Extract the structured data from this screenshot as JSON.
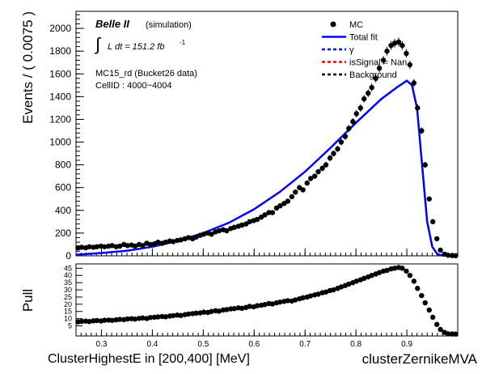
{
  "chart_data": {
    "type": "scatter",
    "experiment": "Belle II",
    "simulation_tag": "(simulation)",
    "lumi_integral": "∫",
    "lumi_text": "L dt = 151.2 fb",
    "lumi_exp": "-1",
    "sample_line1": "MC15_rd (Bucket26 data)",
    "sample_line2": "CellID : 4000~4004",
    "ylabel": "Events / ( 0.0075 )",
    "pull_ylabel": "Pull",
    "xlabel": "ClusterHighestE in [200,400] [MeV]",
    "xlabel2": "clusterZernikeMVA",
    "xlim": [
      0.25,
      1.0
    ],
    "ylim": [
      0,
      2150
    ],
    "pull_ylim": [
      -2,
      48
    ],
    "x_ticks": [
      "0.3",
      "0.4",
      "0.5",
      "0.6",
      "0.7",
      "0.8",
      "0.9"
    ],
    "x_tick_values": [
      0.3,
      0.4,
      0.5,
      0.6,
      0.7,
      0.8,
      0.9
    ],
    "y_ticks": [
      "0",
      "200",
      "400",
      "600",
      "800",
      "1000",
      "1200",
      "1400",
      "1600",
      "1800",
      "2000"
    ],
    "y_tick_values": [
      0,
      200,
      400,
      600,
      800,
      1000,
      1200,
      1400,
      1600,
      1800,
      2000
    ],
    "pull_ticks": [
      "5",
      "10",
      "15",
      "20",
      "25",
      "30",
      "35",
      "40",
      "45"
    ],
    "pull_tick_values": [
      5,
      10,
      15,
      20,
      25,
      30,
      35,
      40,
      45
    ],
    "legend": [
      {
        "label": "MC",
        "kind": "marker",
        "color": "#000000"
      },
      {
        "label": "Total fit",
        "kind": "solid",
        "color": "#0000ff"
      },
      {
        "label": "γ",
        "kind": "dashed",
        "color": "#0000ff"
      },
      {
        "label": "isSignal = Nan",
        "kind": "dashed",
        "color": "#ff0000"
      },
      {
        "label": "Background",
        "kind": "dashed",
        "color": "#000000"
      }
    ],
    "series": [
      {
        "name": "MC",
        "color": "#000000",
        "x": [
          0.254,
          0.261,
          0.269,
          0.276,
          0.284,
          0.291,
          0.299,
          0.306,
          0.314,
          0.321,
          0.329,
          0.336,
          0.344,
          0.351,
          0.359,
          0.366,
          0.374,
          0.381,
          0.389,
          0.396,
          0.404,
          0.411,
          0.419,
          0.426,
          0.434,
          0.441,
          0.449,
          0.456,
          0.464,
          0.471,
          0.479,
          0.486,
          0.494,
          0.501,
          0.509,
          0.516,
          0.524,
          0.531,
          0.539,
          0.546,
          0.554,
          0.561,
          0.569,
          0.576,
          0.584,
          0.591,
          0.599,
          0.606,
          0.614,
          0.621,
          0.629,
          0.636,
          0.644,
          0.651,
          0.659,
          0.666,
          0.674,
          0.681,
          0.689,
          0.696,
          0.704,
          0.711,
          0.719,
          0.726,
          0.734,
          0.741,
          0.749,
          0.756,
          0.764,
          0.771,
          0.779,
          0.786,
          0.794,
          0.801,
          0.809,
          0.816,
          0.824,
          0.831,
          0.839,
          0.846,
          0.854,
          0.861,
          0.869,
          0.876,
          0.884,
          0.891,
          0.899,
          0.906,
          0.914,
          0.921,
          0.929,
          0.936,
          0.944,
          0.951,
          0.959,
          0.966,
          0.974,
          0.981,
          0.989,
          0.996
        ],
        "y": [
          70,
          75,
          70,
          80,
          75,
          80,
          85,
          80,
          85,
          90,
          80,
          85,
          100,
          90,
          95,
          85,
          100,
          90,
          110,
          100,
          105,
          120,
          110,
          120,
          130,
          125,
          135,
          140,
          150,
          160,
          150,
          165,
          180,
          190,
          200,
          190,
          210,
          220,
          230,
          220,
          240,
          250,
          260,
          270,
          280,
          300,
          310,
          320,
          340,
          360,
          380,
          380,
          420,
          440,
          460,
          480,
          520,
          560,
          600,
          580,
          640,
          680,
          700,
          740,
          770,
          800,
          860,
          900,
          940,
          1000,
          1050,
          1120,
          1180,
          1250,
          1300,
          1380,
          1430,
          1480,
          1560,
          1650,
          1720,
          1800,
          1850,
          1870,
          1880,
          1850,
          1780,
          1680,
          1520,
          1300,
          1100,
          800,
          500,
          300,
          150,
          50,
          15,
          5,
          2,
          1
        ],
        "pull": [
          7.8,
          8.1,
          8.3,
          8.0,
          8.5,
          8.7,
          8.4,
          8.9,
          9.0,
          8.8,
          9.2,
          9.5,
          9.3,
          9.8,
          10.0,
          9.7,
          10.2,
          10.5,
          10.1,
          10.8,
          11.0,
          11.2,
          11.5,
          11.3,
          11.8,
          12.1,
          12.5,
          12.2,
          12.8,
          13.2,
          13.5,
          13.8,
          14.0,
          14.5,
          14.3,
          15.0,
          15.5,
          15.2,
          16.0,
          16.3,
          16.8,
          17.0,
          17.5,
          17.2,
          17.8,
          18.5,
          18.2,
          19.0,
          19.3,
          19.8,
          20.5,
          20.2,
          21.0,
          21.5,
          22.0,
          22.5,
          22.2,
          23.0,
          23.8,
          24.5,
          25.0,
          25.8,
          26.5,
          27.0,
          28.0,
          28.5,
          29.5,
          30.0,
          31.0,
          32.0,
          33.0,
          34.0,
          35.0,
          36.0,
          37.0,
          38.0,
          39.0,
          40.0,
          41.0,
          42.0,
          43.0,
          43.5,
          44.5,
          45.0,
          45.5,
          45.0,
          43.0,
          40.0,
          36.0,
          31.0,
          26.0,
          21.0,
          16.0,
          11.0,
          6.0,
          2.5,
          0.5,
          -0.5,
          -0.6,
          -0.7
        ]
      },
      {
        "name": "Total fit",
        "color": "#0000ff",
        "x": [
          0.25,
          0.3,
          0.35,
          0.4,
          0.45,
          0.5,
          0.55,
          0.6,
          0.65,
          0.7,
          0.75,
          0.8,
          0.85,
          0.88,
          0.9,
          0.91,
          0.92,
          0.93,
          0.94,
          0.95,
          0.96,
          0.97,
          1.0
        ],
        "y": [
          10,
          25,
          45,
          80,
          130,
          200,
          290,
          410,
          560,
          740,
          950,
          1170,
          1380,
          1480,
          1540,
          1500,
          1300,
          800,
          300,
          80,
          15,
          3,
          0
        ]
      }
    ]
  }
}
